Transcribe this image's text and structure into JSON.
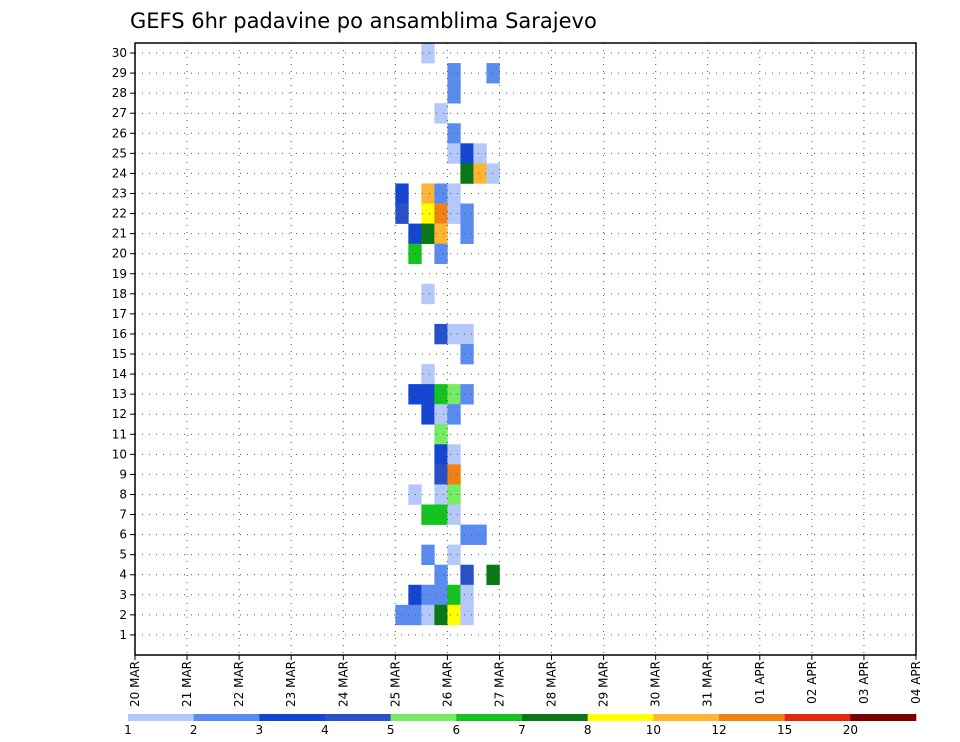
{
  "chart_data": {
    "type": "heatmap",
    "title": "GEFS 6hr padavine po ansamblima Sarajevo",
    "y_ticks": [
      "1",
      "2",
      "3",
      "4",
      "5",
      "6",
      "7",
      "8",
      "9",
      "10",
      "11",
      "12",
      "13",
      "14",
      "15",
      "16",
      "17",
      "18",
      "19",
      "20",
      "21",
      "22",
      "23",
      "24",
      "25",
      "26",
      "27",
      "28",
      "29",
      "30"
    ],
    "x_ticks": [
      "20 MAR",
      "21 MAR",
      "22 MAR",
      "23 MAR",
      "24 MAR",
      "25 MAR",
      "26 MAR",
      "27 MAR",
      "28 MAR",
      "29 MAR",
      "30 MAR",
      "31 MAR",
      "01 APR",
      "02 APR",
      "03 APR",
      "04 APR"
    ],
    "x_range_days": [
      0,
      15
    ],
    "time_step_hours": 6,
    "grid": "dotted",
    "colorbar": {
      "labels": [
        "1",
        "2",
        "3",
        "4",
        "5",
        "6",
        "7",
        "8",
        "10",
        "12",
        "15",
        "20"
      ],
      "colors": [
        "#b4c8fa",
        "#5a8cf0",
        "#1446d2",
        "#2850c8",
        "#78eb64",
        "#14c31e",
        "#0a7814",
        "#ffff00",
        "#ffb432",
        "#f08214",
        "#e1280a",
        "#780000"
      ]
    },
    "cells": [
      [
        22,
        30,
        0
      ],
      [
        24,
        29,
        1
      ],
      [
        27,
        29,
        1
      ],
      [
        24,
        28,
        1
      ],
      [
        23,
        27,
        0
      ],
      [
        24,
        26,
        1
      ],
      [
        24,
        25,
        0
      ],
      [
        25,
        25,
        2
      ],
      [
        26,
        25,
        0
      ],
      [
        25,
        24,
        6
      ],
      [
        26,
        24,
        8
      ],
      [
        27,
        24,
        0
      ],
      [
        20,
        23,
        2
      ],
      [
        22,
        23,
        8
      ],
      [
        23,
        23,
        1
      ],
      [
        24,
        23,
        0
      ],
      [
        20,
        22,
        3
      ],
      [
        22,
        22,
        7
      ],
      [
        23,
        22,
        9
      ],
      [
        24,
        22,
        0
      ],
      [
        25,
        22,
        1
      ],
      [
        21,
        21,
        2
      ],
      [
        22,
        21,
        6
      ],
      [
        23,
        21,
        8
      ],
      [
        25,
        21,
        1
      ],
      [
        21,
        20,
        5
      ],
      [
        23,
        20,
        1
      ],
      [
        22,
        18,
        0
      ],
      [
        23,
        16,
        3
      ],
      [
        24,
        16,
        0
      ],
      [
        25,
        16,
        0
      ],
      [
        25,
        15,
        1
      ],
      [
        22,
        14,
        0
      ],
      [
        21,
        13,
        2
      ],
      [
        22,
        13,
        2
      ],
      [
        23,
        13,
        5
      ],
      [
        24,
        13,
        4
      ],
      [
        25,
        13,
        1
      ],
      [
        22,
        12,
        2
      ],
      [
        23,
        12,
        0
      ],
      [
        24,
        12,
        1
      ],
      [
        23,
        11,
        4
      ],
      [
        23,
        10,
        2
      ],
      [
        24,
        10,
        0
      ],
      [
        23,
        9,
        3
      ],
      [
        24,
        9,
        9
      ],
      [
        21,
        8,
        0
      ],
      [
        23,
        8,
        0
      ],
      [
        24,
        8,
        4
      ],
      [
        22,
        7,
        5
      ],
      [
        23,
        7,
        5
      ],
      [
        24,
        7,
        0
      ],
      [
        25,
        6,
        1
      ],
      [
        26,
        6,
        1
      ],
      [
        22,
        5,
        1
      ],
      [
        24,
        5,
        0
      ],
      [
        23,
        4,
        1
      ],
      [
        25,
        4,
        3
      ],
      [
        27,
        4,
        6
      ],
      [
        21,
        3,
        2
      ],
      [
        22,
        3,
        1
      ],
      [
        23,
        3,
        1
      ],
      [
        24,
        3,
        5
      ],
      [
        25,
        3,
        0
      ],
      [
        20,
        2,
        1
      ],
      [
        21,
        2,
        1
      ],
      [
        22,
        2,
        0
      ],
      [
        23,
        2,
        6
      ],
      [
        24,
        2,
        7
      ],
      [
        25,
        2,
        0
      ]
    ]
  }
}
